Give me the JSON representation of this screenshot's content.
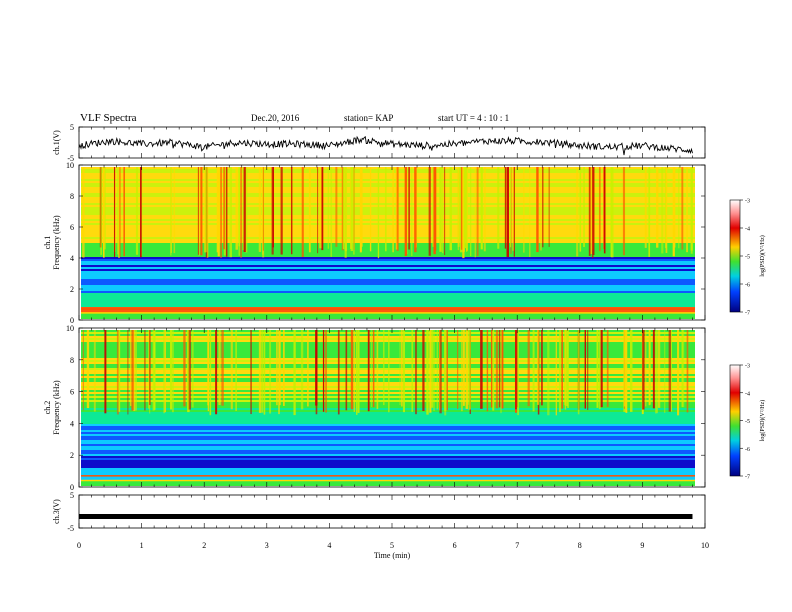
{
  "header": {
    "title": "VLF Spectra",
    "date": "Dec.20, 2016",
    "station": "station= KAP",
    "start": "start  UT =  4 : 10 : 1"
  },
  "colors": {
    "waveform": "#000000",
    "colormap": [
      "#0000c8",
      "#0050ff",
      "#00c8ff",
      "#00e890",
      "#2ee830",
      "#c8f000",
      "#ffd800",
      "#ff5000",
      "#c80000"
    ],
    "background": "#ffffff"
  },
  "chart_data": [
    {
      "type": "line",
      "name": "ch1-waveform",
      "ylabel": "ch.1(V)",
      "ylim": [
        -5,
        5
      ],
      "yticks": [
        "5",
        "-5"
      ],
      "xlim": [
        0,
        10
      ],
      "x": [
        0,
        0.5,
        1.0,
        1.5,
        2.0,
        2.5,
        3.0,
        3.5,
        4.0,
        4.5,
        5.0,
        5.5,
        6.0,
        6.5,
        7.0,
        7.5,
        8.0,
        8.5,
        9.0,
        9.5,
        9.8
      ],
      "values": [
        -1.0,
        0.5,
        -0.5,
        0.0,
        -1.5,
        0.0,
        -0.5,
        -0.5,
        -1.0,
        1.0,
        -0.5,
        -1.0,
        -0.5,
        0.5,
        0.5,
        0.0,
        -1.0,
        -1.5,
        -1.0,
        -2.0,
        -2.5
      ]
    },
    {
      "type": "heatmap",
      "name": "ch1-spectrogram",
      "ylabel": "ch.1\nFrequency  (kHz)",
      "ylim": [
        0,
        10
      ],
      "yticks": [
        "0",
        "2",
        "4",
        "6",
        "8",
        "10"
      ],
      "xlim": [
        0,
        10
      ],
      "colorbar": {
        "label": "log(PSD)(V²/Hz)",
        "range": [
          -7,
          -3
        ],
        "ticks": [
          "-3",
          "-4",
          "-5",
          "-6",
          "-7"
        ]
      }
    },
    {
      "type": "heatmap",
      "name": "ch2-spectrogram",
      "ylabel": "ch.2\nFrequency  (kHz)",
      "ylim": [
        0,
        10
      ],
      "yticks": [
        "0",
        "2",
        "4",
        "6",
        "8",
        "10"
      ],
      "xlim": [
        0,
        10
      ],
      "colorbar": {
        "label": "log(PSD)(V²/Hz)",
        "range": [
          -7,
          -3
        ],
        "ticks": [
          "-3",
          "-4",
          "-5",
          "-6",
          "-7"
        ]
      }
    },
    {
      "type": "line",
      "name": "ch3-waveform",
      "ylabel": "ch.3(V)",
      "ylim": [
        -5,
        5
      ],
      "yticks": [
        "5",
        "-5"
      ],
      "xlim": [
        0,
        10
      ],
      "x": [
        0,
        9.8
      ],
      "values": [
        -1.5,
        -1.5
      ],
      "xlabel": "Time  (min)",
      "xticks": [
        "0",
        "1",
        "2",
        "3",
        "4",
        "5",
        "6",
        "7",
        "8",
        "9",
        "10"
      ]
    }
  ]
}
